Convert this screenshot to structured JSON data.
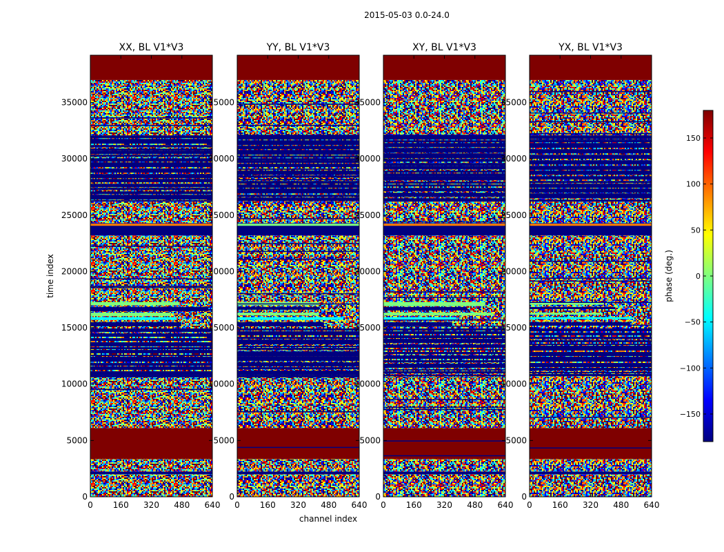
{
  "figure_title": "2015-05-03 0.0-24.0",
  "colormap": [
    "#00007f",
    "#0000ff",
    "#007fff",
    "#00ffff",
    "#7fff7f",
    "#ffff00",
    "#ff7f00",
    "#ff0000",
    "#7f0000"
  ],
  "chart_data": {
    "type": "heatmap",
    "title": "2015-05-03 0.0-24.0",
    "xlabel": "channel index",
    "ylabel": "time index",
    "xlim": [
      0,
      640
    ],
    "ylim": [
      0,
      39200
    ],
    "xticks": [
      0,
      160,
      320,
      480,
      640
    ],
    "yticks": [
      0,
      5000,
      10000,
      15000,
      20000,
      25000,
      30000,
      35000
    ],
    "panels": [
      {
        "name": "XX, BL V1*V3",
        "seed": 11
      },
      {
        "name": "YY, BL V1*V3",
        "seed": 23
      },
      {
        "name": "XY, BL V1*V3",
        "seed": 37
      },
      {
        "name": "YX, BL V1*V3",
        "seed": 53
      }
    ],
    "bands": [
      {
        "from": 0,
        "to": 2000,
        "kind": "noise"
      },
      {
        "from": 2000,
        "to": 2250,
        "kind": "flag"
      },
      {
        "from": 2250,
        "to": 3350,
        "kind": "noise"
      },
      {
        "from": 3350,
        "to": 6100,
        "kind": "masked"
      },
      {
        "from": 6100,
        "to": 10600,
        "kind": "noise"
      },
      {
        "from": 10600,
        "to": 15000,
        "kind": "striped"
      },
      {
        "from": 15000,
        "to": 17800,
        "kind": "mixed"
      },
      {
        "from": 17800,
        "to": 23200,
        "kind": "noise"
      },
      {
        "from": 23200,
        "to": 24300,
        "kind": "flag"
      },
      {
        "from": 24300,
        "to": 26200,
        "kind": "noise"
      },
      {
        "from": 26200,
        "to": 32200,
        "kind": "striped"
      },
      {
        "from": 32200,
        "to": 37000,
        "kind": "noise"
      },
      {
        "from": 37000,
        "to": 39200,
        "kind": "masked"
      }
    ],
    "colorbar": {
      "label": "phase (deg.)",
      "range": [
        -180,
        180
      ],
      "ticks": [
        -150,
        -100,
        -50,
        0,
        50,
        100,
        150
      ]
    }
  }
}
